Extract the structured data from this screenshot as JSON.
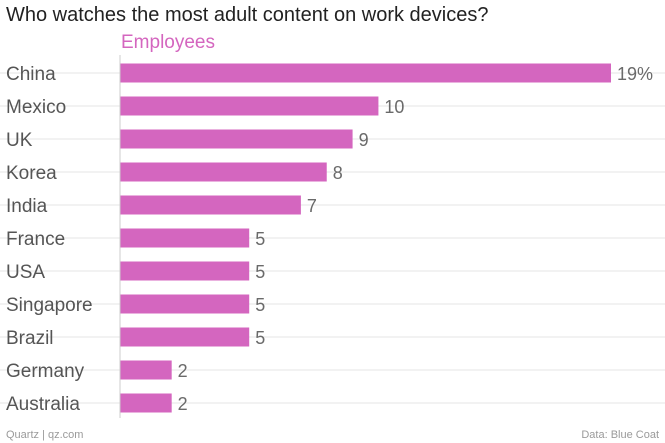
{
  "chart_data": {
    "type": "bar",
    "orientation": "horizontal",
    "title": "Who watches the most adult content on work devices?",
    "categories": [
      "China",
      "Mexico",
      "UK",
      "Korea",
      "India",
      "France",
      "USA",
      "Singapore",
      "Brazil",
      "Germany",
      "Australia"
    ],
    "series": [
      {
        "name": "Employees",
        "values": [
          19,
          10,
          9,
          8,
          7,
          5,
          5,
          5,
          5,
          2,
          2
        ],
        "value_labels": [
          "19%",
          "10",
          "9",
          "8",
          "7",
          "5",
          "5",
          "5",
          "5",
          "2",
          "2"
        ]
      }
    ],
    "xlim": [
      0,
      19
    ],
    "grid": true,
    "bar_color": "#d466bf",
    "source_left": "Quartz | qz.com",
    "source_right": "Data: Blue Coat"
  }
}
